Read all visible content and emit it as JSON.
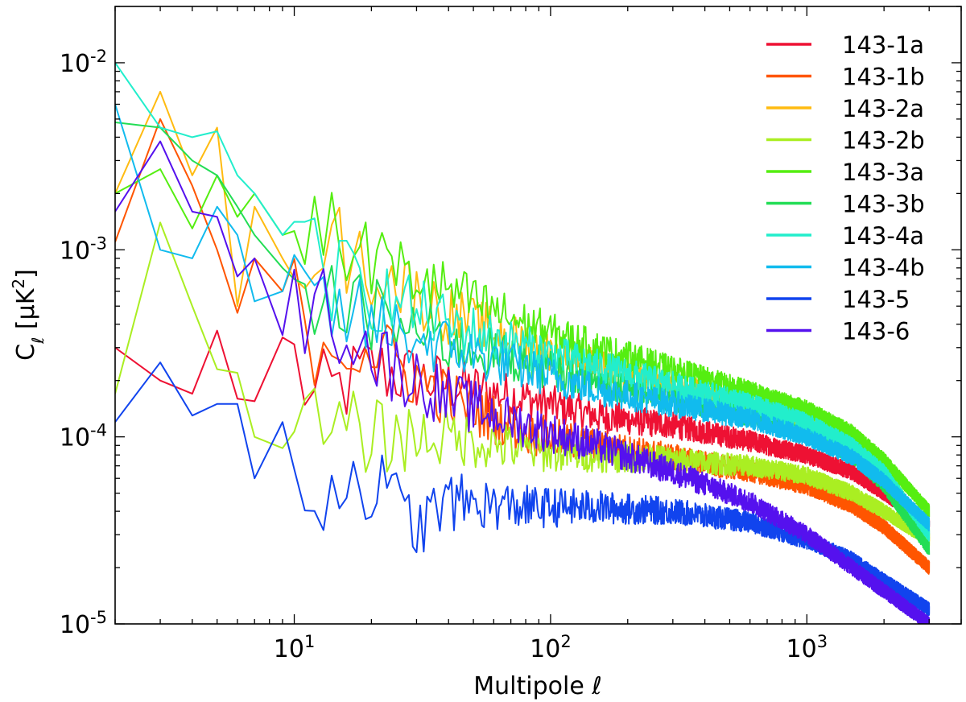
{
  "chart_data": {
    "type": "line",
    "xlabel": "Multipole ℓ",
    "ylabel": "C_ℓ [μK²]",
    "x_scale": "log",
    "y_scale": "log",
    "xlim": [
      2,
      4000
    ],
    "ylim": [
      1e-05,
      0.02
    ],
    "x_ticks": [
      {
        "value": 10,
        "base": "10",
        "exp": "1"
      },
      {
        "value": 100,
        "base": "10",
        "exp": "2"
      },
      {
        "value": 1000,
        "base": "10",
        "exp": "3"
      }
    ],
    "y_ticks": [
      {
        "value": 1e-05,
        "base": "10",
        "exp": "-5"
      },
      {
        "value": 0.0001,
        "base": "10",
        "exp": "-4"
      },
      {
        "value": 0.001,
        "base": "10",
        "exp": "-3"
      },
      {
        "value": 0.01,
        "base": "10",
        "exp": "-2"
      }
    ],
    "grid": false,
    "legend_position": "top-right",
    "series": [
      {
        "name": "143-1a",
        "color": "#ee1133",
        "points": [
          [
            2,
            0.0003
          ],
          [
            3,
            0.0002
          ],
          [
            4,
            0.00017
          ],
          [
            5,
            0.00037
          ],
          [
            6,
            0.00016
          ],
          [
            7,
            0.000155
          ],
          [
            9,
            0.00034
          ],
          [
            12,
            0.00015
          ],
          [
            20,
            0.00023
          ],
          [
            40,
            0.00019
          ],
          [
            80,
            0.00016
          ],
          [
            150,
            0.00013
          ],
          [
            300,
            0.000115
          ],
          [
            600,
            9.5e-05
          ],
          [
            1000,
            8e-05
          ],
          [
            1500,
            6.5e-05
          ],
          [
            2000,
            5e-05
          ],
          [
            3000,
            3.4e-05
          ]
        ]
      },
      {
        "name": "143-1b",
        "color": "#ff5500",
        "points": [
          [
            2,
            0.0011
          ],
          [
            3,
            0.005
          ],
          [
            4,
            0.0022
          ],
          [
            5,
            0.001
          ],
          [
            6,
            0.00046
          ],
          [
            7,
            0.0009
          ],
          [
            9,
            0.0006
          ],
          [
            12,
            0.00035
          ],
          [
            20,
            0.0003
          ],
          [
            40,
            0.00016
          ],
          [
            80,
            0.000105
          ],
          [
            150,
            9e-05
          ],
          [
            300,
            7.8e-05
          ],
          [
            600,
            6.5e-05
          ],
          [
            1000,
            5.5e-05
          ],
          [
            1500,
            4.3e-05
          ],
          [
            2000,
            3.3e-05
          ],
          [
            3000,
            2e-05
          ]
        ]
      },
      {
        "name": "143-2a",
        "color": "#ffbb11",
        "points": [
          [
            2,
            0.002
          ],
          [
            3,
            0.007
          ],
          [
            4,
            0.0025
          ],
          [
            5,
            0.0045
          ],
          [
            6,
            0.0005
          ],
          [
            7,
            0.0017
          ],
          [
            9,
            0.0009
          ],
          [
            12,
            0.0012
          ],
          [
            20,
            0.0008
          ],
          [
            40,
            0.00045
          ],
          [
            80,
            0.00032
          ],
          [
            150,
            0.00024
          ],
          [
            300,
            0.00019
          ],
          [
            600,
            0.00015
          ],
          [
            1000,
            0.00012
          ],
          [
            1500,
            9e-05
          ],
          [
            2000,
            6.5e-05
          ],
          [
            3000,
            3e-05
          ]
        ]
      },
      {
        "name": "143-2b",
        "color": "#aaee22",
        "points": [
          [
            2,
            0.00017
          ],
          [
            3,
            0.0014
          ],
          [
            4,
            0.0005
          ],
          [
            5,
            0.00023
          ],
          [
            6,
            0.00022
          ],
          [
            7,
            0.0001
          ],
          [
            9,
            8.7e-05
          ],
          [
            12,
            0.00011
          ],
          [
            20,
            0.0001
          ],
          [
            40,
            0.0001
          ],
          [
            80,
            8.5e-05
          ],
          [
            150,
            8e-05
          ],
          [
            300,
            7.5e-05
          ],
          [
            600,
            7e-05
          ],
          [
            1000,
            6.2e-05
          ],
          [
            1500,
            5e-05
          ],
          [
            2000,
            4e-05
          ],
          [
            3000,
            2.8e-05
          ]
        ]
      },
      {
        "name": "143-3a",
        "color": "#55ee11",
        "points": [
          [
            2,
            0.002
          ],
          [
            3,
            0.0027
          ],
          [
            4,
            0.0013
          ],
          [
            5,
            0.0025
          ],
          [
            6,
            0.0015
          ],
          [
            7,
            0.002
          ],
          [
            9,
            0.0012
          ],
          [
            12,
            0.0013
          ],
          [
            20,
            0.0009
          ],
          [
            40,
            0.0006
          ],
          [
            80,
            0.0004
          ],
          [
            150,
            0.0003
          ],
          [
            300,
            0.00023
          ],
          [
            600,
            0.000175
          ],
          [
            1000,
            0.00014
          ],
          [
            1500,
            0.000105
          ],
          [
            2000,
            7.5e-05
          ],
          [
            3000,
            4e-05
          ]
        ]
      },
      {
        "name": "143-3b",
        "color": "#22dd55",
        "points": [
          [
            2,
            0.0048
          ],
          [
            3,
            0.0045
          ],
          [
            4,
            0.003
          ],
          [
            5,
            0.0025
          ],
          [
            6,
            0.0017
          ],
          [
            7,
            0.0012
          ],
          [
            9,
            0.0008
          ],
          [
            12,
            0.00055
          ],
          [
            20,
            0.00045
          ],
          [
            40,
            0.00032
          ],
          [
            80,
            0.00025
          ],
          [
            150,
            0.0002
          ],
          [
            300,
            0.00016
          ],
          [
            600,
            0.00013
          ],
          [
            1000,
            0.000105
          ],
          [
            1500,
            8e-05
          ],
          [
            2000,
            5.5e-05
          ],
          [
            3000,
            2.5e-05
          ]
        ]
      },
      {
        "name": "143-4a",
        "color": "#22eecc",
        "points": [
          [
            2,
            0.01
          ],
          [
            3,
            0.0045
          ],
          [
            4,
            0.004
          ],
          [
            5,
            0.0043
          ],
          [
            6,
            0.0025
          ],
          [
            7,
            0.002
          ],
          [
            9,
            0.0012
          ],
          [
            12,
            0.0008
          ],
          [
            20,
            0.0006
          ],
          [
            40,
            0.0004
          ],
          [
            80,
            0.0003
          ],
          [
            150,
            0.00024
          ],
          [
            300,
            0.00019
          ],
          [
            600,
            0.00015
          ],
          [
            1000,
            0.00012
          ],
          [
            1500,
            9e-05
          ],
          [
            2000,
            6.5e-05
          ],
          [
            3000,
            3e-05
          ]
        ]
      },
      {
        "name": "143-4b",
        "color": "#11bbee",
        "points": [
          [
            2,
            0.006
          ],
          [
            3,
            0.001
          ],
          [
            4,
            0.0009
          ],
          [
            5,
            0.0017
          ],
          [
            6,
            0.0012
          ],
          [
            7,
            0.00053
          ],
          [
            9,
            0.0006
          ],
          [
            12,
            0.0005
          ],
          [
            20,
            0.0004
          ],
          [
            40,
            0.0003
          ],
          [
            80,
            0.00023
          ],
          [
            150,
            0.00018
          ],
          [
            300,
            0.00015
          ],
          [
            600,
            0.000125
          ],
          [
            1000,
            0.0001
          ],
          [
            1500,
            7.8e-05
          ],
          [
            2000,
            5.8e-05
          ],
          [
            3000,
            3.4e-05
          ]
        ]
      },
      {
        "name": "143-5",
        "color": "#1144ee",
        "points": [
          [
            2,
            0.00012
          ],
          [
            3,
            0.00025
          ],
          [
            4,
            0.00013
          ],
          [
            5,
            0.00015
          ],
          [
            6,
            0.00015
          ],
          [
            7,
            6e-05
          ],
          [
            9,
            0.00012
          ],
          [
            12,
            5e-05
          ],
          [
            20,
            6e-05
          ],
          [
            30,
            3.3e-05
          ],
          [
            40,
            4.5e-05
          ],
          [
            80,
            4.2e-05
          ],
          [
            150,
            4.2e-05
          ],
          [
            300,
            4e-05
          ],
          [
            600,
            3.5e-05
          ],
          [
            1000,
            2.8e-05
          ],
          [
            1500,
            2.2e-05
          ],
          [
            2000,
            1.7e-05
          ],
          [
            3000,
            1.2e-05
          ]
        ]
      },
      {
        "name": "143-6",
        "color": "#5511ee",
        "points": [
          [
            2,
            0.0016
          ],
          [
            3,
            0.0038
          ],
          [
            4,
            0.0016
          ],
          [
            5,
            0.0015
          ],
          [
            6,
            0.00072
          ],
          [
            7,
            0.0009
          ],
          [
            9,
            0.00035
          ],
          [
            12,
            0.00058
          ],
          [
            20,
            0.00028
          ],
          [
            40,
            0.00016
          ],
          [
            80,
            0.000115
          ],
          [
            150,
            9e-05
          ],
          [
            300,
            6.5e-05
          ],
          [
            600,
            4.5e-05
          ],
          [
            1000,
            3e-05
          ],
          [
            1500,
            2e-05
          ],
          [
            2000,
            1.5e-05
          ],
          [
            3000,
            1e-05
          ]
        ]
      }
    ]
  }
}
